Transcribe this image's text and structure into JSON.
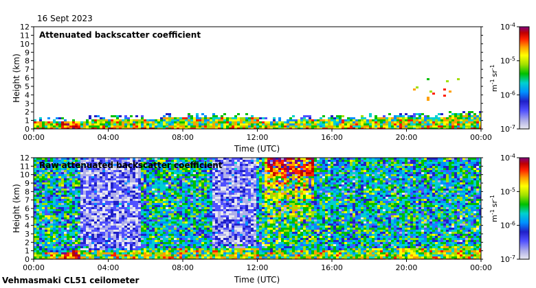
{
  "date_label": "16 Sept 2023",
  "footer_label": "Vehmasmaki CL51 ceilometer",
  "chart_data": [
    {
      "type": "heatmap",
      "title": "Attenuated backscatter coefficient",
      "xlabel": "Time (UTC)",
      "ylabel": "Height (km)",
      "xlim": [
        0,
        24
      ],
      "ylim": [
        0,
        12
      ],
      "x_ticks": [
        "00:00",
        "04:00",
        "08:00",
        "12:00",
        "16:00",
        "20:00",
        "00:00"
      ],
      "x_tick_values": [
        0,
        4,
        8,
        12,
        16,
        20,
        24
      ],
      "y_ticks": [
        "0",
        "1",
        "2",
        "3",
        "4",
        "5",
        "6",
        "7",
        "8",
        "9",
        "10",
        "11",
        "12"
      ],
      "colorbar": {
        "scale": "log",
        "range": [
          1e-07,
          0.0001
        ],
        "tick_labels": [
          {
            "base": "10",
            "exp": "-4",
            "value": 0.0001
          },
          {
            "base": "10",
            "exp": "-5",
            "value": 1e-05
          },
          {
            "base": "10",
            "exp": "-6",
            "value": 1e-06
          },
          {
            "base": "10",
            "exp": "-7",
            "value": 1e-07
          }
        ],
        "unit_m": "m",
        "unit_m_exp": "-1",
        "unit_sr": "sr",
        "unit_sr_exp": "-1"
      }
    },
    {
      "type": "heatmap",
      "title": "Raw attenuated backscatter coefficient",
      "xlabel": "Time (UTC)",
      "ylabel": "Height (km)",
      "xlim": [
        0,
        24
      ],
      "ylim": [
        0,
        12
      ],
      "x_ticks": [
        "00:00",
        "04:00",
        "08:00",
        "12:00",
        "16:00",
        "20:00",
        "00:00"
      ],
      "x_tick_values": [
        0,
        4,
        8,
        12,
        16,
        20,
        24
      ],
      "y_ticks": [
        "0",
        "1",
        "2",
        "3",
        "4",
        "5",
        "6",
        "7",
        "8",
        "9",
        "10",
        "11",
        "12"
      ],
      "colorbar": {
        "scale": "log",
        "range": [
          1e-07,
          0.0001
        ],
        "tick_labels": [
          {
            "base": "10",
            "exp": "-4",
            "value": 0.0001
          },
          {
            "base": "10",
            "exp": "-5",
            "value": 1e-05
          },
          {
            "base": "10",
            "exp": "-6",
            "value": 1e-06
          },
          {
            "base": "10",
            "exp": "-7",
            "value": 1e-07
          }
        ],
        "unit_m": "m",
        "unit_m_exp": "-1",
        "unit_sr": "sr",
        "unit_sr_exp": "-1"
      }
    }
  ],
  "colormap": [
    "#e8e8f0",
    "#b0b0e8",
    "#5050ff",
    "#2020c8",
    "#0090ff",
    "#00d0d0",
    "#00c000",
    "#a0e000",
    "#ffff00",
    "#ffa000",
    "#ff2000",
    "#c00000",
    "#800080"
  ]
}
